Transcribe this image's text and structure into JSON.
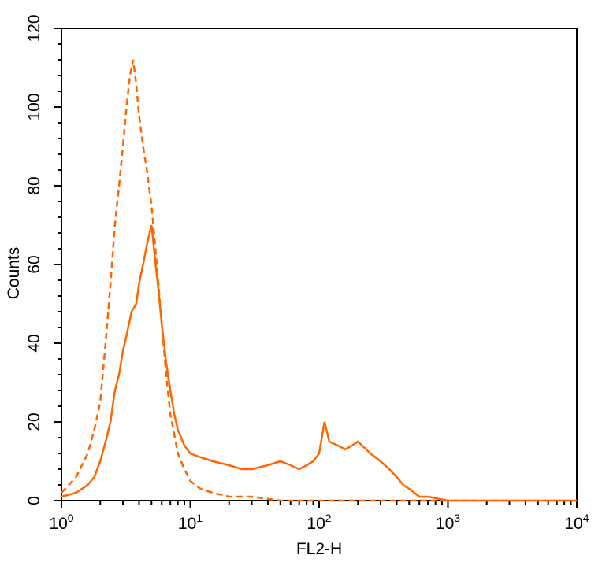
{
  "chart_data": {
    "type": "line",
    "title": "",
    "xlabel": "FL2-H",
    "ylabel": "Counts",
    "x_scale": "log",
    "xlim": [
      1,
      10000
    ],
    "ylim": [
      0,
      120
    ],
    "grid": false,
    "legend": "none",
    "x_ticks": [
      {
        "base": "10",
        "exp": "0",
        "value": 1
      },
      {
        "base": "10",
        "exp": "1",
        "value": 10
      },
      {
        "base": "10",
        "exp": "2",
        "value": 100
      },
      {
        "base": "10",
        "exp": "3",
        "value": 1000
      },
      {
        "base": "10",
        "exp": "4",
        "value": 10000
      }
    ],
    "y_ticks": [
      "0",
      "20",
      "40",
      "60",
      "80",
      "100",
      "120"
    ],
    "series": [
      {
        "style": "dashed",
        "color": "#ff6600",
        "x": [
          1.0,
          1.3,
          1.6,
          1.8,
          2.0,
          2.2,
          2.4,
          2.6,
          2.8,
          3.0,
          3.2,
          3.4,
          3.6,
          3.8,
          4.0,
          4.3,
          4.6,
          5.0,
          5.5,
          6.0,
          6.5,
          7.0,
          8.0,
          9.0,
          10.0,
          12.0,
          15.0,
          20.0,
          30.0,
          50.0,
          100.0,
          200.0,
          500.0,
          1000.0,
          10000.0
        ],
        "y": [
          2,
          6,
          12,
          18,
          25,
          40,
          55,
          70,
          80,
          90,
          100,
          108,
          112,
          106,
          98,
          90,
          84,
          75,
          60,
          45,
          32,
          22,
          12,
          8,
          5,
          3,
          2,
          1,
          1,
          0,
          0,
          0,
          0,
          0,
          0
        ]
      },
      {
        "style": "solid",
        "color": "#ff6600",
        "x": [
          1.0,
          1.3,
          1.6,
          1.8,
          2.0,
          2.2,
          2.4,
          2.6,
          2.8,
          3.0,
          3.2,
          3.5,
          3.8,
          4.0,
          4.3,
          4.6,
          5.0,
          5.3,
          5.6,
          6.0,
          6.5,
          7.0,
          7.5,
          8.0,
          9.0,
          10.0,
          12.0,
          15.0,
          20.0,
          25.0,
          30.0,
          40.0,
          50.0,
          60.0,
          70.0,
          80.0,
          90.0,
          100.0,
          110.0,
          120.0,
          140.0,
          160.0,
          180.0,
          200.0,
          250.0,
          300.0,
          350.0,
          400.0,
          450.0,
          500.0,
          600.0,
          700.0,
          1000.0,
          10000.0
        ],
        "y": [
          1,
          2,
          4,
          6,
          10,
          15,
          20,
          28,
          32,
          38,
          42,
          48,
          50,
          55,
          60,
          65,
          70,
          62,
          55,
          45,
          35,
          28,
          22,
          18,
          14,
          12,
          11,
          10,
          9,
          8,
          8,
          9,
          10,
          9,
          8,
          9,
          10,
          12,
          20,
          15,
          14,
          13,
          14,
          15,
          12,
          10,
          8,
          6,
          4,
          3,
          1,
          1,
          0,
          0
        ]
      }
    ]
  }
}
